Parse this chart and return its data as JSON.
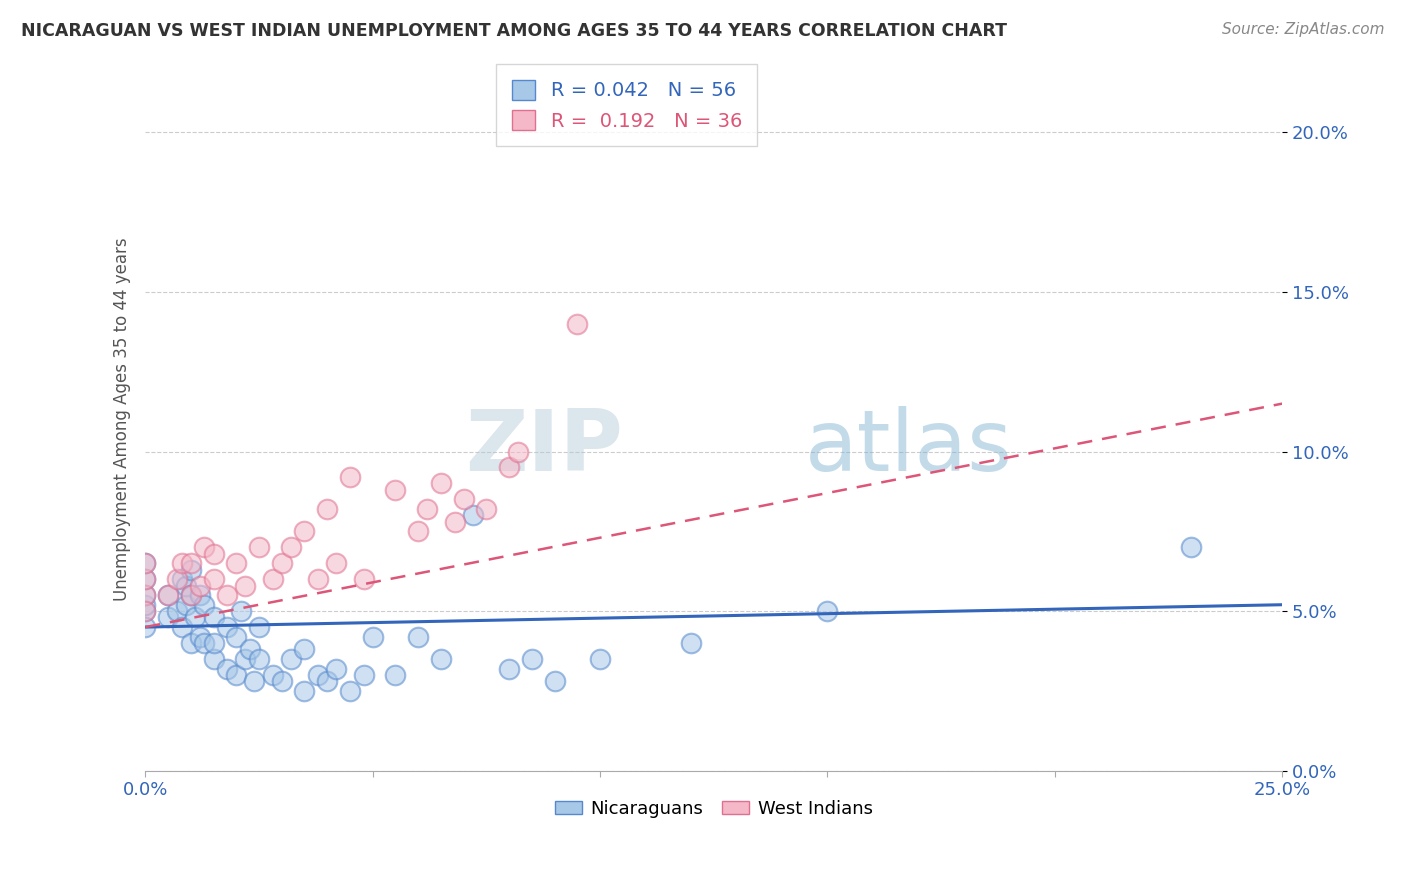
{
  "title": "NICARAGUAN VS WEST INDIAN UNEMPLOYMENT AMONG AGES 35 TO 44 YEARS CORRELATION CHART",
  "source": "Source: ZipAtlas.com",
  "ylabel": "Unemployment Among Ages 35 to 44 years",
  "xlim": [
    0.0,
    0.25
  ],
  "ylim": [
    0.0,
    0.22
  ],
  "xticks": [
    0.0,
    0.05,
    0.1,
    0.15,
    0.2,
    0.25
  ],
  "yticks": [
    0.0,
    0.05,
    0.1,
    0.15,
    0.2
  ],
  "nicaraguan_R": 0.042,
  "nicaraguan_N": 56,
  "westindian_R": 0.192,
  "westindian_N": 36,
  "blue_fill": "#a8c8e8",
  "blue_edge": "#5588cc",
  "pink_fill": "#f4b8c8",
  "pink_edge": "#e07090",
  "blue_line_color": "#3366bb",
  "pink_line_color": "#dd5577",
  "watermark_color": "#c8dff0",
  "background_color": "#ffffff",
  "nicaraguan_x": [
    0.0,
    0.0,
    0.0,
    0.0,
    0.0,
    0.0,
    0.005,
    0.005,
    0.007,
    0.008,
    0.008,
    0.009,
    0.009,
    0.01,
    0.01,
    0.01,
    0.011,
    0.012,
    0.012,
    0.013,
    0.013,
    0.015,
    0.015,
    0.015,
    0.018,
    0.018,
    0.02,
    0.02,
    0.021,
    0.022,
    0.023,
    0.024,
    0.025,
    0.025,
    0.028,
    0.03,
    0.032,
    0.035,
    0.035,
    0.038,
    0.04,
    0.042,
    0.045,
    0.048,
    0.05,
    0.055,
    0.06,
    0.065,
    0.072,
    0.08,
    0.085,
    0.09,
    0.1,
    0.12,
    0.15,
    0.23
  ],
  "nicaraguan_y": [
    0.05,
    0.052,
    0.055,
    0.045,
    0.06,
    0.065,
    0.048,
    0.055,
    0.05,
    0.045,
    0.06,
    0.052,
    0.058,
    0.04,
    0.055,
    0.063,
    0.048,
    0.042,
    0.055,
    0.04,
    0.052,
    0.035,
    0.04,
    0.048,
    0.032,
    0.045,
    0.03,
    0.042,
    0.05,
    0.035,
    0.038,
    0.028,
    0.035,
    0.045,
    0.03,
    0.028,
    0.035,
    0.025,
    0.038,
    0.03,
    0.028,
    0.032,
    0.025,
    0.03,
    0.042,
    0.03,
    0.042,
    0.035,
    0.08,
    0.032,
    0.035,
    0.028,
    0.035,
    0.04,
    0.05,
    0.07
  ],
  "westindian_x": [
    0.0,
    0.0,
    0.0,
    0.0,
    0.005,
    0.007,
    0.008,
    0.01,
    0.01,
    0.012,
    0.013,
    0.015,
    0.015,
    0.018,
    0.02,
    0.022,
    0.025,
    0.028,
    0.03,
    0.032,
    0.035,
    0.038,
    0.04,
    0.042,
    0.045,
    0.048,
    0.055,
    0.06,
    0.062,
    0.065,
    0.068,
    0.07,
    0.075,
    0.08,
    0.082,
    0.095
  ],
  "westindian_y": [
    0.055,
    0.06,
    0.065,
    0.05,
    0.055,
    0.06,
    0.065,
    0.055,
    0.065,
    0.058,
    0.07,
    0.06,
    0.068,
    0.055,
    0.065,
    0.058,
    0.07,
    0.06,
    0.065,
    0.07,
    0.075,
    0.06,
    0.082,
    0.065,
    0.092,
    0.06,
    0.088,
    0.075,
    0.082,
    0.09,
    0.078,
    0.085,
    0.082,
    0.095,
    0.1,
    0.14
  ]
}
